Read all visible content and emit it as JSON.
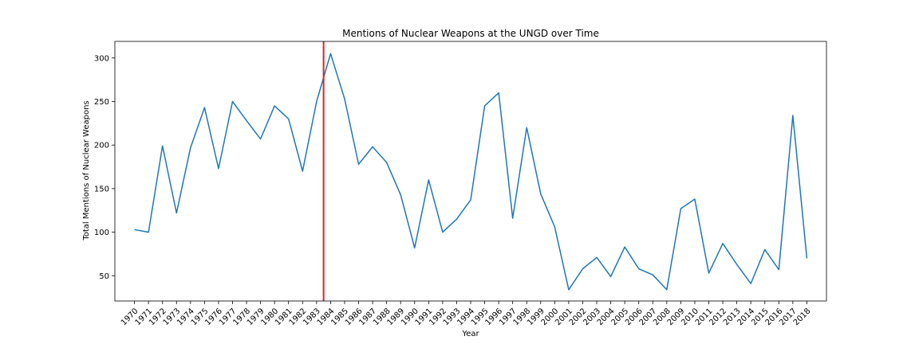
{
  "chart_data": {
    "type": "line",
    "title": "Mentions of Nuclear Weapons at the UNGD over Time",
    "xlabel": "Year",
    "ylabel": "Total Mentions of Nuclear Weapons",
    "x": [
      1970,
      1971,
      1972,
      1973,
      1974,
      1975,
      1976,
      1977,
      1978,
      1979,
      1980,
      1981,
      1982,
      1983,
      1984,
      1985,
      1986,
      1987,
      1988,
      1989,
      1990,
      1991,
      1992,
      1993,
      1994,
      1995,
      1996,
      1997,
      1998,
      1999,
      2000,
      2001,
      2002,
      2003,
      2004,
      2005,
      2006,
      2007,
      2008,
      2009,
      2010,
      2011,
      2012,
      2013,
      2014,
      2015,
      2016,
      2017,
      2018
    ],
    "x_tick_labels": [
      "1970",
      "1971",
      "1972",
      "1973",
      "1974",
      "1975",
      "1976",
      "1977",
      "1978",
      "1979",
      "1980",
      "1981",
      "1982",
      "1983",
      "1984",
      "1985",
      "1986",
      "1987",
      "1988",
      "1989",
      "1990",
      "1991",
      "1992",
      "1993",
      "1994",
      "1995",
      "1996",
      "1997",
      "1998",
      "1999",
      "2000",
      "2001",
      "2002",
      "2003",
      "2004",
      "2005",
      "2006",
      "2007",
      "2008",
      "2009",
      "2010",
      "2011",
      "2012",
      "2013",
      "2014",
      "2015",
      "2016",
      "2017",
      "2018"
    ],
    "series": [
      {
        "values": [
          103,
          100,
          199,
          122,
          197,
          243,
          173,
          250,
          228,
          207,
          245,
          230,
          170,
          250,
          305,
          253,
          178,
          198,
          180,
          143,
          82,
          160,
          100,
          115,
          137,
          245,
          260,
          116,
          220,
          144,
          106,
          34,
          58,
          71,
          49,
          83,
          58,
          51,
          34,
          127,
          138,
          53,
          87,
          63,
          41,
          80,
          57,
          234,
          70
        ],
        "color": "#1f77b4"
      }
    ],
    "xlim": [
      1968.6,
      2019.4
    ],
    "ylim": [
      21,
      319
    ],
    "y_ticks": [
      50,
      100,
      150,
      200,
      250,
      300
    ],
    "vline": {
      "x": 1983.5,
      "color": "#d62728"
    },
    "grid": false,
    "legend": "none"
  }
}
